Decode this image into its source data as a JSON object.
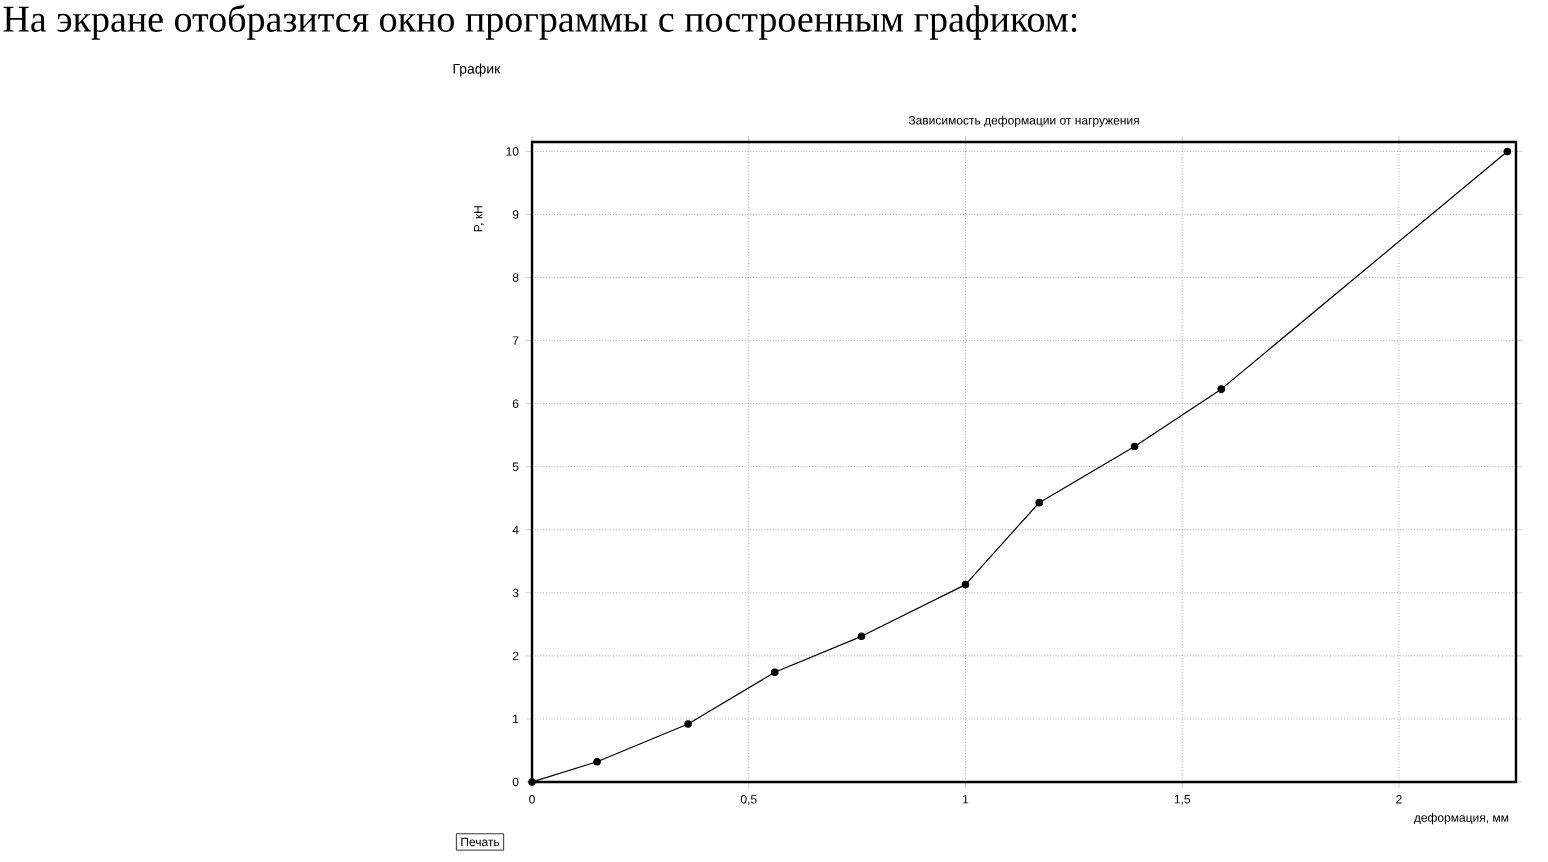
{
  "chart_data": {
    "type": "line",
    "title": "Зависимость деформации от нагружения",
    "xlabel": "деформация, мм",
    "ylabel": "P, кН",
    "annotations": [
      "На экране отобразится окно программы с построенным графиком:",
      "График",
      "Печать"
    ],
    "x": [
      0,
      0.15,
      0.36,
      0.56,
      0.76,
      1.0,
      1.17,
      1.39,
      1.59,
      2.25
    ],
    "series": [
      {
        "color": "#000000",
        "values": [
          0,
          0.32,
          0.92,
          1.74,
          2.31,
          3.13,
          4.43,
          5.32,
          6.23,
          10
        ]
      }
    ],
    "xlim": [
      0,
      2.27
    ],
    "ylim": [
      0,
      10.15
    ],
    "xticks": [
      0,
      {
        "value": 0.5,
        "label": "0,5"
      },
      1,
      {
        "value": 1.5,
        "label": "1,5"
      },
      2
    ],
    "yticks": [
      0,
      1,
      2,
      3,
      4,
      5,
      6,
      7,
      8,
      9,
      10
    ],
    "grid": true,
    "marker": "circle",
    "line_style": "solid"
  }
}
